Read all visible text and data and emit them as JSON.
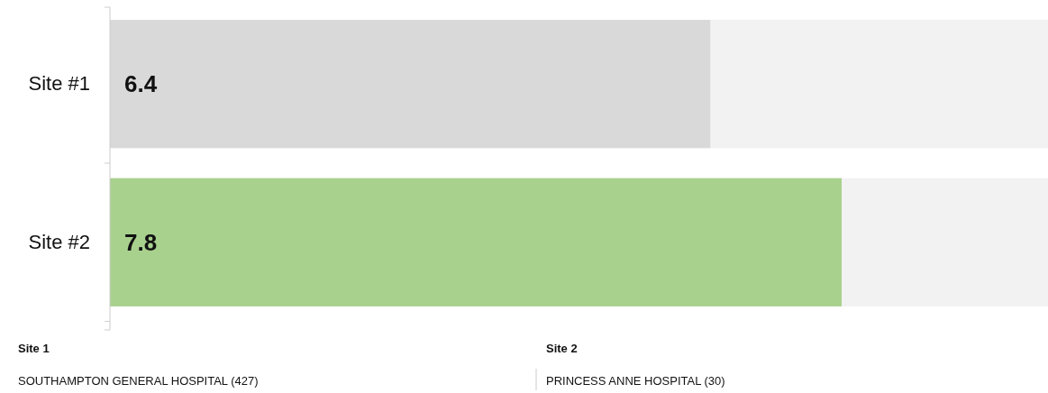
{
  "chart_data": {
    "type": "bar",
    "orientation": "horizontal",
    "categories": [
      "Site #1",
      "Site #2"
    ],
    "values": [
      6.4,
      7.8
    ],
    "colors": [
      "#d9d9d9",
      "#a9d18e"
    ],
    "xlim": [
      0,
      10
    ],
    "tick_labels": "y",
    "data_labels": true,
    "annotations": [
      "Site 1",
      "SOUTHAMPTON GENERAL HOSPITAL (427)",
      "Site 2",
      "PRINCESS ANNE HOSPITAL (30)"
    ]
  }
}
